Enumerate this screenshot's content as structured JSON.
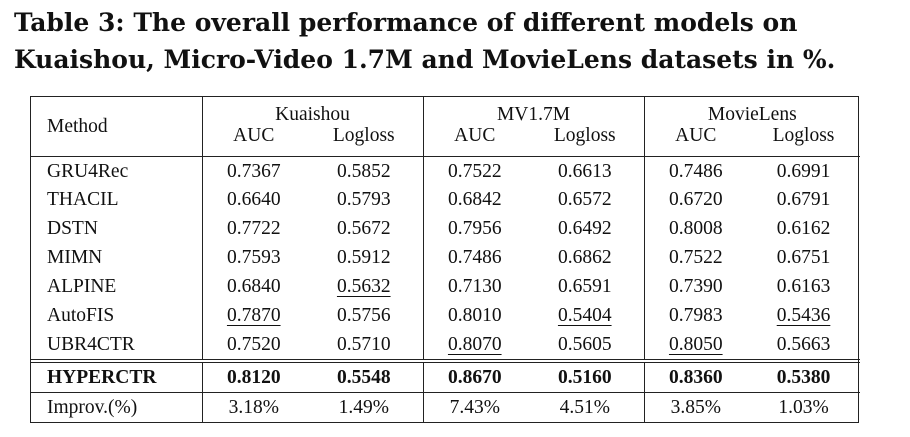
{
  "caption": "Table 3: The overall performance of different models on Kuaishou, Micro-Video 1.7M and MovieLens datasets in %.",
  "table": {
    "method_header": "Method",
    "groups": [
      "Kuaishou",
      "MV1.7M",
      "MovieLens"
    ],
    "metrics": [
      "AUC",
      "Logloss",
      "AUC",
      "Logloss",
      "AUC",
      "Logloss"
    ],
    "rows": [
      {
        "method": "GRU4Rec",
        "values": [
          "0.7367",
          "0.5852",
          "0.7522",
          "0.6613",
          "0.7486",
          "0.6991"
        ],
        "underline": []
      },
      {
        "method": "THACIL",
        "values": [
          "0.6640",
          "0.5793",
          "0.6842",
          "0.6572",
          "0.6720",
          "0.6791"
        ],
        "underline": []
      },
      {
        "method": "DSTN",
        "values": [
          "0.7722",
          "0.5672",
          "0.7956",
          "0.6492",
          "0.8008",
          "0.6162"
        ],
        "underline": []
      },
      {
        "method": "MIMN",
        "values": [
          "0.7593",
          "0.5912",
          "0.7486",
          "0.6862",
          "0.7522",
          "0.6751"
        ],
        "underline": []
      },
      {
        "method": "ALPINE",
        "values": [
          "0.6840",
          "0.5632",
          "0.7130",
          "0.6591",
          "0.7390",
          "0.6163"
        ],
        "underline": [
          1
        ]
      },
      {
        "method": "AutoFIS",
        "values": [
          "0.7870",
          "0.5756",
          "0.8010",
          "0.5404",
          "0.7983",
          "0.5436"
        ],
        "underline": [
          0,
          3,
          5
        ]
      },
      {
        "method": "UBR4CTR",
        "values": [
          "0.7520",
          "0.5710",
          "0.8070",
          "0.5605",
          "0.8050",
          "0.5663"
        ],
        "underline": [
          2,
          4
        ]
      }
    ],
    "best": {
      "method": "HYPERCTR",
      "values": [
        "0.8120",
        "0.5548",
        "0.8670",
        "0.5160",
        "0.8360",
        "0.5380"
      ]
    },
    "improv": {
      "method": "Improv.(%)",
      "values": [
        "3.18%",
        "1.49%",
        "7.43%",
        "4.51%",
        "3.85%",
        "1.03%"
      ]
    }
  }
}
